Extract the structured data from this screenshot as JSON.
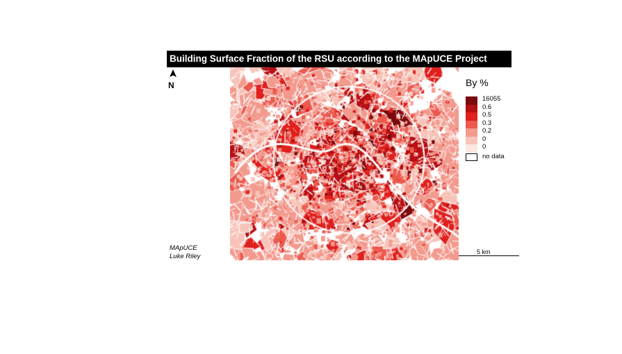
{
  "map": {
    "title": "Building Surface Fraction of the RSU according to the MApUCE Project",
    "north_label": "N",
    "credit_line1": "MApUCE",
    "credit_line2": "Luke Riley",
    "scale_label": "5 km",
    "legend": {
      "title": "By %",
      "classes": [
        {
          "label": "16055",
          "color": "#7a0a0d"
        },
        {
          "label": "0.6",
          "color": "#b60f14"
        },
        {
          "label": "0.5",
          "color": "#e0201e"
        },
        {
          "label": "0.3",
          "color": "#ec5a4e"
        },
        {
          "label": "0.2",
          "color": "#f39a8e"
        },
        {
          "label": "0",
          "color": "#f8c4b9"
        },
        {
          "label": "0",
          "color": "#fde7e1"
        }
      ],
      "no_data_label": "no data"
    },
    "icons": {
      "north_arrow": "north-arrow-icon"
    }
  }
}
